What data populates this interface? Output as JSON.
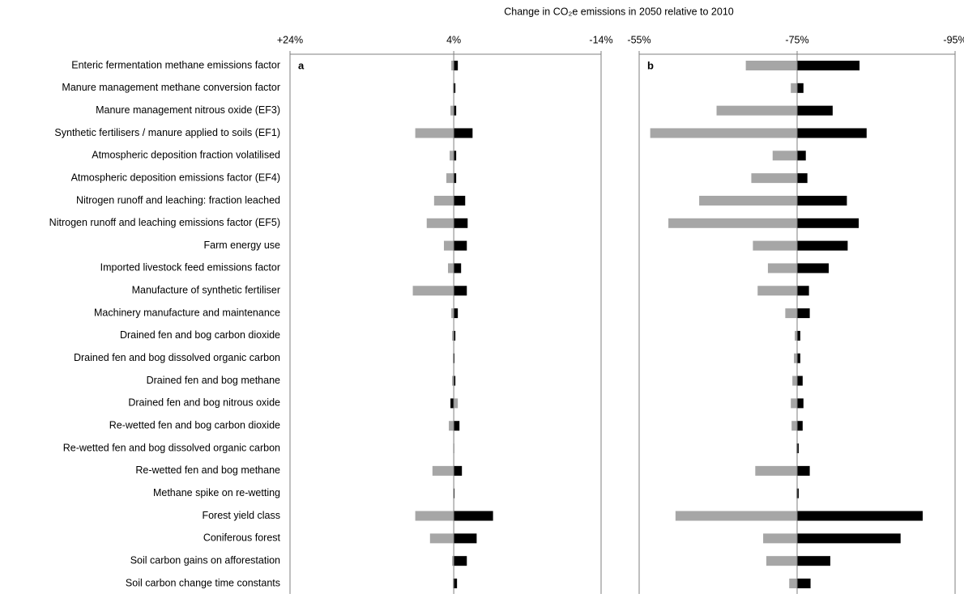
{
  "chart_data": [
    {
      "type": "bar",
      "orientation": "horizontal",
      "panel": "a",
      "title": "Change in CO₂e emissions in 2050 relative to 2010",
      "categories": [
        "Enteric fermentation methane emissions factor",
        "Manure management methane conversion factor",
        "Manure management nitrous oxide (EF3)",
        "Synthetic fertilisers / manure applied to soils (EF1)",
        "Atmospheric deposition fraction volatilised",
        "Atmospheric deposition emissions factor  (EF4)",
        "Nitrogen runoff and leaching: fraction leached ",
        "Nitrogen runoff and leaching emissions factor (EF5)",
        "Farm energy use",
        "Imported livestock feed emissions factor",
        "Manufacture of synthetic fertiliser",
        "Machinery manufacture and maintenance",
        "Drained fen and bog carbon dioxide",
        "Drained fen and bog dissolved organic carbon",
        "Drained fen and bog methane",
        "Drained fen and bog nitrous oxide",
        "Re-wetted fen and bog carbon dioxide",
        "Re-wetted fen and bog dissolved organic carbon",
        "Re-wetted fen and bog methane",
        "Methane spike on re-wetting",
        "Forest yield class",
        "Coniferous forest ",
        "Soil carbon gains on afforestation",
        "Soil carbon change time constants"
      ],
      "xlim": [
        24,
        -14
      ],
      "xticks": [
        {
          "value": 24,
          "label": "+24%"
        },
        {
          "value": 4,
          "label": "4%"
        },
        {
          "value": -14,
          "label": "-14%"
        }
      ],
      "series": [
        {
          "color": "#a6a6a6",
          "values": [
            4.3,
            4.1,
            4.4,
            8.7,
            4.5,
            4.9,
            6.4,
            7.3,
            5.2,
            4.7,
            9.0,
            4.3,
            4.2,
            4.1,
            4.2,
            3.5,
            4.6,
            4.05,
            6.6,
            4.05,
            8.7,
            6.9,
            4.2,
            4.1
          ]
        },
        {
          "color": "#000000",
          "values": [
            3.5,
            3.8,
            3.7,
            1.7,
            3.7,
            3.7,
            2.6,
            2.3,
            2.4,
            3.1,
            2.4,
            3.5,
            3.8,
            3.9,
            3.8,
            4.4,
            3.3,
            3.95,
            3.0,
            3.9,
            -0.8,
            1.2,
            2.4,
            3.6
          ]
        }
      ]
    },
    {
      "type": "bar",
      "orientation": "horizontal",
      "panel": "b",
      "xlim": [
        -55,
        -95
      ],
      "xticks": [
        {
          "value": -55,
          "label": "-55%"
        },
        {
          "value": -75,
          "label": "-75%"
        },
        {
          "value": -95,
          "label": "-95%"
        }
      ],
      "series": [
        {
          "color": "#a6a6a6",
          "values": [
            -68.5,
            -74.2,
            -64.8,
            -56.4,
            -71.9,
            -69.2,
            -62.6,
            -58.7,
            -69.4,
            -71.3,
            -70.0,
            -73.5,
            -74.7,
            -74.6,
            -74.4,
            -74.2,
            -74.3,
            -74.9,
            -69.7,
            -74.9,
            -59.6,
            -70.7,
            -71.1,
            -74.0
          ]
        },
        {
          "color": "#000000",
          "values": [
            -82.9,
            -75.8,
            -79.5,
            -83.8,
            -76.1,
            -76.3,
            -81.3,
            -82.8,
            -81.4,
            -79.0,
            -76.5,
            -76.6,
            -75.4,
            -75.4,
            -75.7,
            -75.8,
            -75.7,
            -75.2,
            -76.6,
            -75.2,
            -90.9,
            -88.1,
            -79.2,
            -76.7
          ]
        }
      ]
    }
  ]
}
